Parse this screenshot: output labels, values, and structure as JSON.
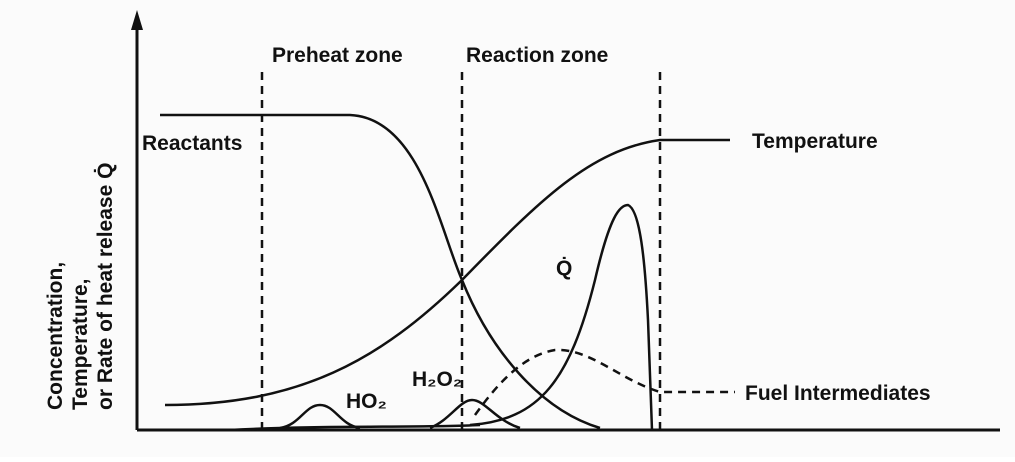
{
  "zones": [
    "Preheat zone",
    "Reaction zone"
  ],
  "y_axis_label": [
    "Concentration,",
    "Temperature,",
    "or Rate of heat release Q̇"
  ],
  "curve_labels": {
    "reactants": "Reactants",
    "temperature": "Temperature",
    "heat_release": "Q̇",
    "ho2": "HO₂",
    "h2o2": "H₂O₂",
    "fuel_intermediates": "Fuel Intermediates"
  }
}
